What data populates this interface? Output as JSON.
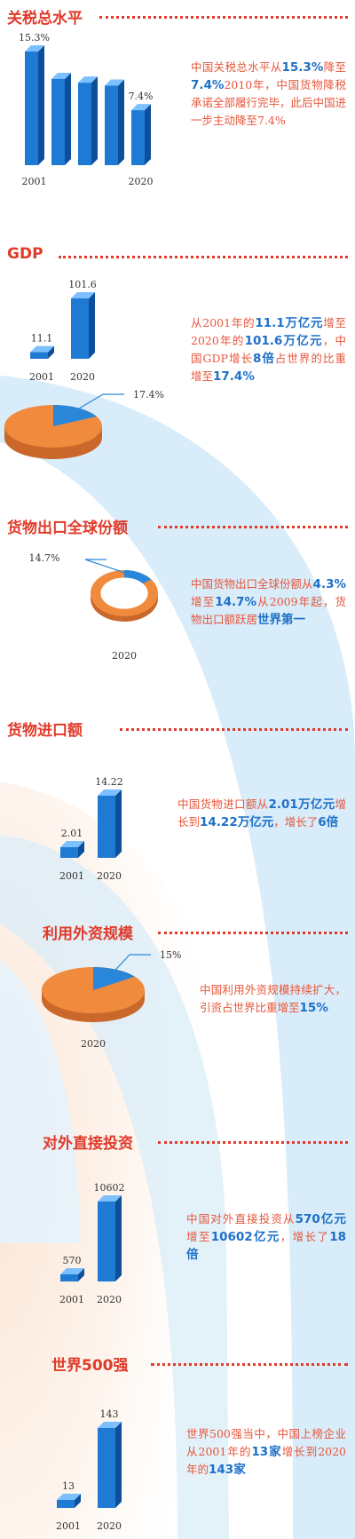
{
  "colors": {
    "title": "#e03a2a",
    "text": "#e8553a",
    "highlight": "#1d6fc8",
    "bar_front": "#1f7ad4",
    "bar_top": "#7cc0ff",
    "bar_side": "#0d4f9a",
    "pie_orange": "#f08a3c",
    "pie_blue": "#2a86d8",
    "background_arc": "#d8ecf9",
    "background_glow": "#fbe2cf"
  },
  "sections": [
    {
      "title": "关税总水平",
      "desc": [
        {
          "t": "中国关税总水平从",
          "h": false
        },
        {
          "t": "15.3%",
          "h": true
        },
        {
          "t": "降至",
          "h": false
        },
        {
          "t": "7.4%",
          "h": true
        },
        {
          "t": "2010年，中国货物降税承诺全部履行完毕，此后中国进一步主动降至7.4%",
          "h": false
        }
      ],
      "chart_data": {
        "type": "bar",
        "title": "",
        "categories": [
          "2001",
          "",
          "",
          "",
          "2020"
        ],
        "values": [
          15.3,
          11.6,
          11.1,
          10.7,
          7.4
        ],
        "data_labels": [
          "15.3%",
          "",
          "",
          "",
          "7.4%"
        ],
        "ylim": [
          0,
          15.3
        ]
      }
    },
    {
      "title": "GDP",
      "desc": [
        {
          "t": "从2001年的",
          "h": false
        },
        {
          "t": "11.1万亿元",
          "h": true
        },
        {
          "t": "增至2020年的",
          "h": false
        },
        {
          "t": "101.6万亿元",
          "h": true
        },
        {
          "t": "，中国GDP增长",
          "h": false
        },
        {
          "t": "8倍",
          "h": true
        },
        {
          "t": "占世界的比重增至",
          "h": false
        },
        {
          "t": "17.4%",
          "h": true
        }
      ],
      "chart_data": [
        {
          "type": "bar",
          "categories": [
            "2001",
            "2020"
          ],
          "values": [
            11.1,
            101.6
          ],
          "data_labels": [
            "11.1",
            "101.6"
          ]
        },
        {
          "type": "pie",
          "slices": [
            {
              "value": 17.4,
              "label": "17.4%"
            },
            {
              "value": 82.6,
              "label": ""
            }
          ]
        }
      ]
    },
    {
      "title": "货物出口全球份额",
      "desc": [
        {
          "t": "中国货物出口全球份额从",
          "h": false
        },
        {
          "t": "4.3%",
          "h": true
        },
        {
          "t": "增至",
          "h": false
        },
        {
          "t": "14.7%",
          "h": true
        },
        {
          "t": "从2009年起，货物出口额跃居",
          "h": false
        },
        {
          "t": "世界第一",
          "h": true
        }
      ],
      "chart_data": {
        "type": "pie",
        "subtype": "donut",
        "slices": [
          {
            "value": 14.7,
            "label": "14.7%"
          },
          {
            "value": 85.3,
            "label": ""
          }
        ],
        "caption": "2020"
      }
    },
    {
      "title": "货物进口额",
      "desc": [
        {
          "t": "中国货物进口额从",
          "h": false
        },
        {
          "t": "2.01万亿元",
          "h": true
        },
        {
          "t": "增长到",
          "h": false
        },
        {
          "t": "14.22万亿元",
          "h": true
        },
        {
          "t": "，增长了",
          "h": false
        },
        {
          "t": "6倍",
          "h": true
        }
      ],
      "chart_data": {
        "type": "bar",
        "categories": [
          "2001",
          "2020"
        ],
        "values": [
          2.01,
          14.22
        ],
        "data_labels": [
          "2.01",
          "14.22"
        ]
      }
    },
    {
      "title": "利用外资规模",
      "desc": [
        {
          "t": "中国利用外资规模持续扩大，引资占世界比重增至",
          "h": false
        },
        {
          "t": "15%",
          "h": true
        }
      ],
      "chart_data": {
        "type": "pie",
        "slices": [
          {
            "value": 15,
            "label": "15%"
          },
          {
            "value": 85,
            "label": ""
          }
        ],
        "caption": "2020"
      }
    },
    {
      "title": "对外直接投资",
      "desc": [
        {
          "t": "中国对外直接投资从",
          "h": false
        },
        {
          "t": "570亿元",
          "h": true
        },
        {
          "t": "增至",
          "h": false
        },
        {
          "t": "10602亿元",
          "h": true
        },
        {
          "t": "，增长了",
          "h": false
        },
        {
          "t": "18倍",
          "h": true
        }
      ],
      "chart_data": {
        "type": "bar",
        "categories": [
          "2001",
          "2020"
        ],
        "values": [
          570,
          10602
        ],
        "data_labels": [
          "570",
          "10602"
        ]
      }
    },
    {
      "title": "世界500强",
      "desc": [
        {
          "t": "世界500强当中，中国上榜企业从2001年的",
          "h": false
        },
        {
          "t": "13家",
          "h": true
        },
        {
          "t": "增长到2020年的",
          "h": false
        },
        {
          "t": "143家",
          "h": true
        }
      ],
      "chart_data": {
        "type": "bar",
        "categories": [
          "2001",
          "2020"
        ],
        "values": [
          13,
          143
        ],
        "data_labels": [
          "13",
          "143"
        ]
      }
    }
  ]
}
